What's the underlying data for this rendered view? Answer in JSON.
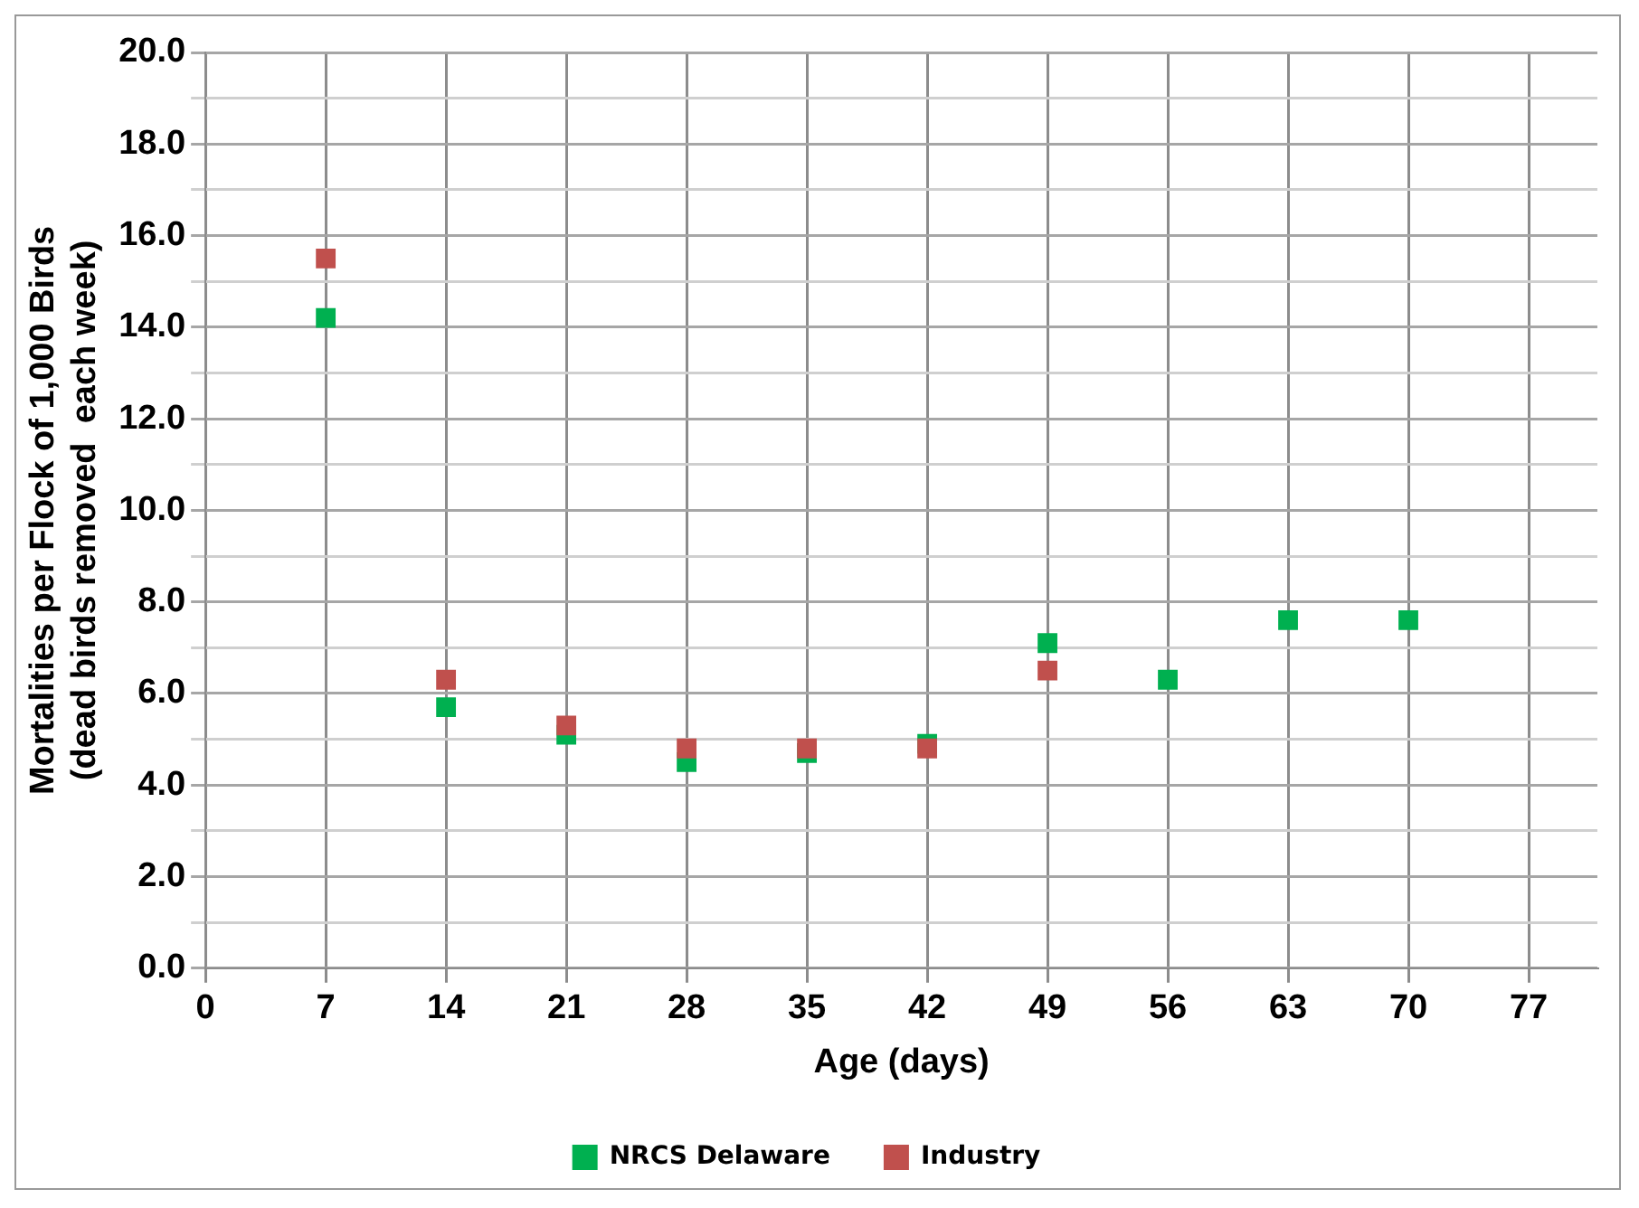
{
  "chart_data": {
    "type": "scatter",
    "xlabel": "Age (days)",
    "ylabel": "Mortalities per Flock of 1,000 Birds\n(dead birds removed  each week)",
    "x": [
      7,
      14,
      21,
      28,
      35,
      42,
      49,
      56,
      63,
      70
    ],
    "series": [
      {
        "name": "NRCS Delaware",
        "color": "#00b050",
        "values": [
          14.2,
          5.7,
          5.1,
          4.5,
          4.7,
          4.9,
          7.1,
          6.3,
          7.6,
          7.6
        ]
      },
      {
        "name": "Industry",
        "color": "#c0504d",
        "values": [
          15.5,
          6.3,
          5.3,
          4.8,
          4.8,
          4.8,
          6.5,
          null,
          null,
          null
        ]
      }
    ],
    "xlim": [
      0,
      81
    ],
    "xticks": [
      0,
      7,
      14,
      21,
      28,
      35,
      42,
      49,
      56,
      63,
      70,
      77
    ],
    "ylim": [
      0,
      20
    ],
    "yticks": [
      {
        "value": 0,
        "label": "0.0"
      },
      {
        "value": 1,
        "label": null
      },
      {
        "value": 2,
        "label": "2.0"
      },
      {
        "value": 3,
        "label": null
      },
      {
        "value": 4,
        "label": "4.0"
      },
      {
        "value": 5,
        "label": null
      },
      {
        "value": 6,
        "label": "6.0"
      },
      {
        "value": 7,
        "label": null
      },
      {
        "value": 8,
        "label": "8.0"
      },
      {
        "value": 9,
        "label": null
      },
      {
        "value": 10,
        "label": "10.0"
      },
      {
        "value": 11,
        "label": null
      },
      {
        "value": 12,
        "label": "12.0"
      },
      {
        "value": 13,
        "label": null
      },
      {
        "value": 14,
        "label": "14.0"
      },
      {
        "value": 15,
        "label": null
      },
      {
        "value": 16,
        "label": "16.0"
      },
      {
        "value": 17,
        "label": null
      },
      {
        "value": 18,
        "label": "18.0"
      },
      {
        "value": 19,
        "label": null
      },
      {
        "value": 20,
        "label": "20.0"
      }
    ],
    "grid": true,
    "legend": "bottom",
    "marker": "square"
  }
}
